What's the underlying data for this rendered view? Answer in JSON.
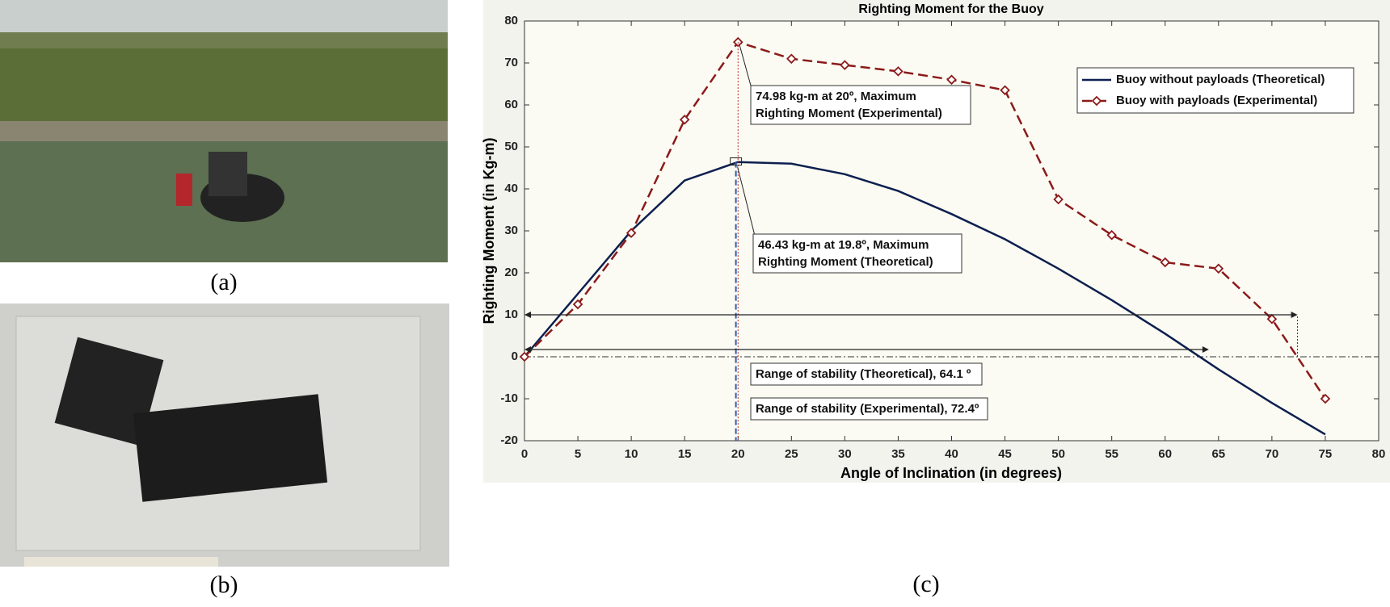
{
  "captions": [
    "(a)",
    "(b)",
    "(c)"
  ],
  "chart_data": {
    "type": "line",
    "title": "Righting Moment for the Buoy",
    "xlabel": "Angle of Inclination (in degrees)",
    "ylabel": "Righting Moment (in Kg-m)",
    "x": [
      0,
      5,
      10,
      15,
      20,
      25,
      30,
      35,
      40,
      45,
      50,
      55,
      60,
      65,
      70,
      75
    ],
    "series": [
      {
        "name": "Buoy without payloads (Theoretical)",
        "color": "#0d1f4f",
        "dash": "solid",
        "marker": "none",
        "values": [
          0,
          15,
          30,
          42,
          46.4,
          46,
          43.5,
          39.5,
          34,
          28,
          21,
          13.5,
          5.5,
          -3,
          -11,
          -18.5
        ]
      },
      {
        "name": "Buoy with payloads (Experimental)",
        "color": "#8b1a1a",
        "dash": "dashed",
        "marker": "diamond",
        "values": [
          0,
          12.5,
          29.5,
          56.5,
          74.98,
          71,
          69.5,
          68,
          66,
          63.5,
          37.5,
          29,
          22.5,
          21,
          9,
          -10
        ]
      }
    ],
    "xlim": [
      0,
      80
    ],
    "ylim": [
      -20,
      80
    ],
    "xticks": [
      0,
      5,
      10,
      15,
      20,
      25,
      30,
      35,
      40,
      45,
      50,
      55,
      60,
      65,
      70,
      75,
      80
    ],
    "yticks": [
      -20,
      -10,
      0,
      10,
      20,
      30,
      40,
      50,
      60,
      70,
      80
    ],
    "grid": false,
    "legend": "upper right",
    "annotations": [
      {
        "lines": [
          "74.98 kg-m at 20º, Maximum",
          "Righting Moment (Experimental)"
        ],
        "x": 20,
        "y": 74.98
      },
      {
        "lines": [
          "46.43 kg-m at 19.8º, Maximum",
          "Righting Moment (Theoretical)"
        ],
        "x": 19.8,
        "y": 46.43
      },
      {
        "lines": [
          "Range of stability (Theoretical), 64.1 º"
        ],
        "x": 64.1
      },
      {
        "lines": [
          "Range of stability (Experimental), 72.4º"
        ],
        "x": 72.4
      }
    ]
  }
}
